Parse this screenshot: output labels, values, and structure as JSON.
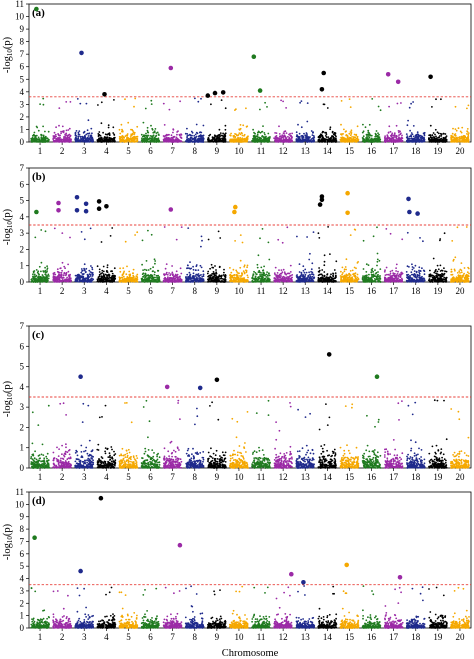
{
  "chart_data": {
    "type": "scatter",
    "figure_xlabel": "Chromosome",
    "chromosomes": [
      "1",
      "2",
      "3",
      "4",
      "5",
      "6",
      "7",
      "8",
      "9",
      "10",
      "11",
      "12",
      "13",
      "14",
      "15",
      "16",
      "17",
      "18",
      "19",
      "20"
    ],
    "chromosome_colors": [
      "#1f7a1f",
      "#9b2aa6",
      "#1f2a8c",
      "#000000",
      "#f5a800"
    ],
    "threshold_color": "#e8413b",
    "panels": [
      {
        "tag": "(a)",
        "ylabel_prefix": "-log",
        "ylabel_sub": "10",
        "ylabel_suffix": "(p)",
        "ylim": [
          0,
          11
        ],
        "yticks": [
          0,
          1,
          2,
          3,
          4,
          5,
          6,
          7,
          8,
          9,
          10,
          11
        ],
        "threshold": 3.6,
        "background_max": 2.5,
        "significant": [
          {
            "chr": 1,
            "pos": 0.3,
            "y": 10.6
          },
          {
            "chr": 3,
            "pos": 0.35,
            "y": 7.1
          },
          {
            "chr": 4,
            "pos": 0.4,
            "y": 3.8
          },
          {
            "chr": 7,
            "pos": 0.4,
            "y": 5.9
          },
          {
            "chr": 9,
            "pos": 0.0,
            "y": 3.7
          },
          {
            "chr": 9,
            "pos": 0.4,
            "y": 3.9
          },
          {
            "chr": 9,
            "pos": 0.85,
            "y": 3.95
          },
          {
            "chr": 11,
            "pos": 0.1,
            "y": 6.8
          },
          {
            "chr": 11,
            "pos": 0.45,
            "y": 4.1
          },
          {
            "chr": 14,
            "pos": 0.3,
            "y": 5.5
          },
          {
            "chr": 14,
            "pos": 0.2,
            "y": 4.2
          },
          {
            "chr": 17,
            "pos": 0.2,
            "y": 5.4
          },
          {
            "chr": 17,
            "pos": 0.75,
            "y": 4.8
          },
          {
            "chr": 19,
            "pos": 0.1,
            "y": 5.2
          }
        ]
      },
      {
        "tag": "(b)",
        "ylabel_prefix": "-log",
        "ylabel_sub": "10",
        "ylabel_suffix": "(p)",
        "ylim": [
          0,
          7
        ],
        "yticks": [
          0,
          1,
          2,
          3,
          4,
          5,
          6,
          7
        ],
        "threshold": 3.5,
        "background_max": 2.4,
        "significant": [
          {
            "chr": 1,
            "pos": 0.3,
            "y": 4.3
          },
          {
            "chr": 2,
            "pos": 0.3,
            "y": 4.85
          },
          {
            "chr": 2,
            "pos": 0.3,
            "y": 4.4
          },
          {
            "chr": 3,
            "pos": 0.1,
            "y": 5.2
          },
          {
            "chr": 3,
            "pos": 0.1,
            "y": 4.4
          },
          {
            "chr": 3,
            "pos": 0.6,
            "y": 4.8
          },
          {
            "chr": 3,
            "pos": 0.6,
            "y": 4.35
          },
          {
            "chr": 4,
            "pos": 0.1,
            "y": 4.95
          },
          {
            "chr": 4,
            "pos": 0.1,
            "y": 4.5
          },
          {
            "chr": 4,
            "pos": 0.5,
            "y": 4.65
          },
          {
            "chr": 7,
            "pos": 0.4,
            "y": 4.45
          },
          {
            "chr": 10,
            "pos": 0.3,
            "y": 4.6
          },
          {
            "chr": 10,
            "pos": 0.25,
            "y": 4.3
          },
          {
            "chr": 14,
            "pos": 0.2,
            "y": 5.25
          },
          {
            "chr": 14,
            "pos": 0.2,
            "y": 5.05
          },
          {
            "chr": 14,
            "pos": 0.1,
            "y": 4.75
          },
          {
            "chr": 15,
            "pos": 0.4,
            "y": 5.45
          },
          {
            "chr": 15,
            "pos": 0.4,
            "y": 4.25
          },
          {
            "chr": 18,
            "pos": 0.1,
            "y": 5.1
          },
          {
            "chr": 18,
            "pos": 0.15,
            "y": 4.3
          },
          {
            "chr": 18,
            "pos": 0.6,
            "y": 4.2
          }
        ]
      },
      {
        "tag": "(c)",
        "ylabel_prefix": "-log",
        "ylabel_sub": "10",
        "ylabel_suffix": "(p)",
        "ylim": [
          0,
          7
        ],
        "yticks": [
          0,
          1,
          2,
          3,
          4,
          5,
          6,
          7
        ],
        "threshold": 3.5,
        "background_max": 2.1,
        "significant": [
          {
            "chr": 3,
            "pos": 0.3,
            "y": 4.5
          },
          {
            "chr": 7,
            "pos": 0.2,
            "y": 4.0
          },
          {
            "chr": 8,
            "pos": 0.8,
            "y": 3.95
          },
          {
            "chr": 9,
            "pos": 0.5,
            "y": 4.35
          },
          {
            "chr": 14,
            "pos": 0.6,
            "y": 5.6
          },
          {
            "chr": 16,
            "pos": 0.8,
            "y": 4.5
          }
        ]
      },
      {
        "tag": "(d)",
        "ylabel_prefix": "-log",
        "ylabel_sub": "10",
        "ylabel_suffix": "(p)",
        "ylim": [
          0,
          11
        ],
        "yticks": [
          0,
          1,
          2,
          3,
          4,
          5,
          6,
          7,
          8,
          9,
          10,
          11
        ],
        "threshold": 3.5,
        "background_max": 2.6,
        "significant": [
          {
            "chr": 1,
            "pos": 0.2,
            "y": 7.3
          },
          {
            "chr": 3,
            "pos": 0.3,
            "y": 4.6
          },
          {
            "chr": 4,
            "pos": 0.2,
            "y": 10.5
          },
          {
            "chr": 7,
            "pos": 0.9,
            "y": 6.7
          },
          {
            "chr": 12,
            "pos": 0.95,
            "y": 4.35
          },
          {
            "chr": 13,
            "pos": 0.4,
            "y": 3.7
          },
          {
            "chr": 15,
            "pos": 0.35,
            "y": 5.1
          },
          {
            "chr": 17,
            "pos": 0.85,
            "y": 4.1
          }
        ]
      }
    ]
  }
}
